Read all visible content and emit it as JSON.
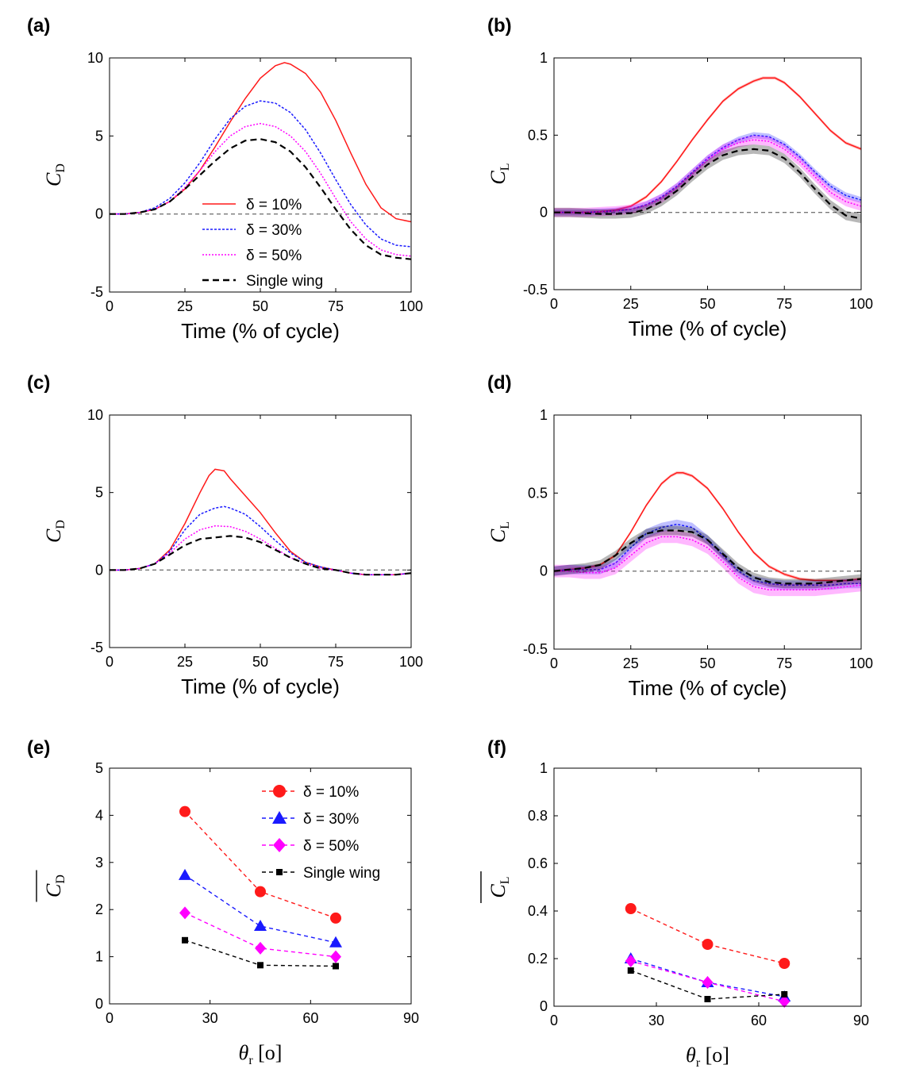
{
  "series_styles": [
    {
      "key": "d10",
      "name": "δ = 10%",
      "color": "#ff1a1a",
      "dash": "",
      "marker": "circle"
    },
    {
      "key": "d30",
      "name": "δ = 30%",
      "color": "#1a1aff",
      "dash": "3,2",
      "marker": "triangle"
    },
    {
      "key": "d50",
      "name": "δ = 50%",
      "color": "#ff00ff",
      "dash": "2,2",
      "marker": "diamond"
    },
    {
      "key": "single",
      "name": "Single wing",
      "color": "#000000",
      "dash": "8,5",
      "marker": "square"
    }
  ],
  "chart_data": [
    {
      "panel": "(a)",
      "type": "line",
      "xlabel": "Time (% of cycle)",
      "ylabel": "C",
      "ylabel_sub": "D",
      "xlim": [
        0,
        100
      ],
      "ylim": [
        -5,
        10
      ],
      "xticks": [
        0,
        25,
        50,
        75,
        100
      ],
      "yticks": [
        -5,
        0,
        5,
        10
      ],
      "zero_line": true,
      "legend": "center-left",
      "series": [
        {
          "key": "d10",
          "x": [
            0,
            5,
            10,
            15,
            20,
            25,
            30,
            35,
            40,
            45,
            50,
            55,
            58,
            60,
            65,
            70,
            75,
            80,
            85,
            90,
            95,
            100
          ],
          "y": [
            0,
            0,
            0.1,
            0.3,
            0.8,
            1.6,
            2.8,
            4.3,
            5.9,
            7.4,
            8.7,
            9.5,
            9.7,
            9.6,
            9.0,
            7.8,
            6.0,
            3.9,
            1.9,
            0.4,
            -0.3,
            -0.5
          ]
        },
        {
          "key": "d30",
          "x": [
            0,
            5,
            10,
            15,
            20,
            25,
            30,
            35,
            40,
            45,
            50,
            55,
            60,
            65,
            70,
            75,
            80,
            85,
            90,
            95,
            100
          ],
          "y": [
            0,
            0,
            0.1,
            0.4,
            1.0,
            2.0,
            3.3,
            4.8,
            6.1,
            6.9,
            7.25,
            7.1,
            6.5,
            5.4,
            3.9,
            2.2,
            0.6,
            -0.7,
            -1.6,
            -2.0,
            -2.1
          ]
        },
        {
          "key": "d50",
          "x": [
            0,
            5,
            10,
            15,
            20,
            25,
            30,
            35,
            40,
            45,
            50,
            55,
            60,
            65,
            70,
            75,
            80,
            85,
            90,
            95,
            100
          ],
          "y": [
            0,
            0,
            0.1,
            0.3,
            0.8,
            1.7,
            2.8,
            4.0,
            5.0,
            5.6,
            5.8,
            5.6,
            5.0,
            4.0,
            2.6,
            1.0,
            -0.5,
            -1.6,
            -2.3,
            -2.6,
            -2.7
          ]
        },
        {
          "key": "single",
          "x": [
            0,
            5,
            10,
            15,
            20,
            25,
            30,
            35,
            40,
            45,
            50,
            55,
            60,
            65,
            70,
            75,
            80,
            85,
            90,
            95,
            100
          ],
          "y": [
            0,
            0,
            0.1,
            0.3,
            0.8,
            1.6,
            2.5,
            3.4,
            4.2,
            4.7,
            4.8,
            4.6,
            4.0,
            3.0,
            1.7,
            0.3,
            -1.0,
            -2.0,
            -2.6,
            -2.8,
            -2.9
          ]
        }
      ]
    },
    {
      "panel": "(b)",
      "type": "line",
      "xlabel": "Time (% of cycle)",
      "ylabel": "C",
      "ylabel_sub": "L",
      "xlim": [
        0,
        100
      ],
      "ylim": [
        -0.5,
        1
      ],
      "xticks": [
        0,
        25,
        50,
        75,
        100
      ],
      "yticks": [
        -0.5,
        0,
        0.5,
        1
      ],
      "zero_line": true,
      "series": [
        {
          "key": "d10",
          "x": [
            0,
            5,
            10,
            15,
            20,
            25,
            30,
            35,
            40,
            45,
            50,
            55,
            60,
            65,
            68,
            70,
            72,
            75,
            80,
            85,
            90,
            95,
            100
          ],
          "y": [
            0,
            0,
            0,
            0.005,
            0.015,
            0.04,
            0.1,
            0.2,
            0.33,
            0.47,
            0.6,
            0.72,
            0.8,
            0.85,
            0.87,
            0.87,
            0.87,
            0.84,
            0.75,
            0.64,
            0.53,
            0.45,
            0.41
          ],
          "band": 0.01
        },
        {
          "key": "d30",
          "x": [
            0,
            5,
            10,
            15,
            20,
            25,
            30,
            35,
            40,
            45,
            50,
            55,
            60,
            65,
            70,
            75,
            80,
            85,
            90,
            95,
            100
          ],
          "y": [
            0,
            0,
            0,
            0.005,
            0.01,
            0.02,
            0.05,
            0.1,
            0.17,
            0.26,
            0.35,
            0.42,
            0.47,
            0.5,
            0.49,
            0.44,
            0.36,
            0.26,
            0.17,
            0.11,
            0.08
          ],
          "band": 0.02
        },
        {
          "key": "d50",
          "x": [
            0,
            5,
            10,
            15,
            20,
            25,
            30,
            35,
            40,
            45,
            50,
            55,
            60,
            65,
            70,
            75,
            80,
            85,
            90,
            95,
            100
          ],
          "y": [
            0,
            0,
            0,
            0.005,
            0.01,
            0.02,
            0.045,
            0.09,
            0.16,
            0.25,
            0.34,
            0.41,
            0.45,
            0.47,
            0.46,
            0.41,
            0.33,
            0.23,
            0.13,
            0.07,
            0.04
          ],
          "band": 0.03
        },
        {
          "key": "single",
          "x": [
            0,
            5,
            10,
            15,
            20,
            25,
            30,
            35,
            40,
            45,
            50,
            55,
            60,
            65,
            70,
            75,
            80,
            85,
            90,
            95,
            100
          ],
          "y": [
            0,
            0,
            -0.005,
            -0.01,
            -0.01,
            -0.005,
            0.02,
            0.07,
            0.14,
            0.23,
            0.31,
            0.37,
            0.4,
            0.41,
            0.4,
            0.35,
            0.26,
            0.15,
            0.05,
            -0.02,
            -0.04
          ],
          "band": 0.03
        }
      ]
    },
    {
      "panel": "(c)",
      "type": "line",
      "xlabel": "Time (% of cycle)",
      "ylabel": "C",
      "ylabel_sub": "D",
      "xlim": [
        0,
        100
      ],
      "ylim": [
        -5,
        10
      ],
      "xticks": [
        0,
        25,
        50,
        75,
        100
      ],
      "yticks": [
        -5,
        0,
        5,
        10
      ],
      "zero_line": true,
      "series": [
        {
          "key": "d10",
          "x": [
            0,
            5,
            10,
            15,
            20,
            25,
            30,
            33,
            35,
            38,
            40,
            45,
            50,
            55,
            60,
            65,
            70,
            75,
            80,
            85,
            90,
            95,
            100
          ],
          "y": [
            0,
            0,
            0.1,
            0.4,
            1.3,
            3.0,
            5.0,
            6.1,
            6.5,
            6.4,
            5.9,
            4.8,
            3.7,
            2.4,
            1.2,
            0.5,
            0.2,
            0,
            -0.2,
            -0.3,
            -0.3,
            -0.3,
            -0.2
          ]
        },
        {
          "key": "d30",
          "x": [
            0,
            5,
            10,
            15,
            20,
            25,
            30,
            35,
            38,
            40,
            45,
            50,
            55,
            60,
            65,
            70,
            75,
            80,
            85,
            90,
            95,
            100
          ],
          "y": [
            0,
            0,
            0.1,
            0.4,
            1.2,
            2.6,
            3.6,
            4.0,
            4.1,
            4.0,
            3.6,
            2.8,
            1.9,
            1.1,
            0.5,
            0.2,
            0,
            -0.2,
            -0.3,
            -0.3,
            -0.3,
            -0.2
          ]
        },
        {
          "key": "d50",
          "x": [
            0,
            5,
            10,
            15,
            20,
            25,
            30,
            35,
            40,
            45,
            50,
            55,
            60,
            65,
            70,
            75,
            80,
            85,
            90,
            95,
            100
          ],
          "y": [
            0,
            0,
            0.1,
            0.4,
            1.1,
            2.0,
            2.6,
            2.85,
            2.8,
            2.5,
            2.0,
            1.4,
            0.8,
            0.4,
            0.1,
            0,
            -0.2,
            -0.3,
            -0.3,
            -0.3,
            -0.2
          ]
        },
        {
          "key": "single",
          "x": [
            0,
            5,
            10,
            15,
            20,
            25,
            30,
            35,
            40,
            45,
            50,
            55,
            60,
            65,
            70,
            75,
            80,
            85,
            90,
            95,
            100
          ],
          "y": [
            0,
            0,
            0.1,
            0.4,
            1.0,
            1.6,
            2.0,
            2.1,
            2.2,
            2.1,
            1.8,
            1.3,
            0.8,
            0.4,
            0.1,
            0,
            -0.2,
            -0.3,
            -0.3,
            -0.3,
            -0.2
          ]
        }
      ]
    },
    {
      "panel": "(d)",
      "type": "line",
      "xlabel": "Time (% of cycle)",
      "ylabel": "C",
      "ylabel_sub": "L",
      "xlim": [
        0,
        100
      ],
      "ylim": [
        -0.5,
        1
      ],
      "xticks": [
        0,
        25,
        50,
        75,
        100
      ],
      "yticks": [
        -0.5,
        0,
        0.5,
        1
      ],
      "zero_line": true,
      "series": [
        {
          "key": "d10",
          "x": [
            0,
            5,
            10,
            15,
            20,
            25,
            30,
            35,
            38,
            40,
            42,
            45,
            50,
            55,
            60,
            65,
            70,
            75,
            80,
            85,
            90,
            95,
            100
          ],
          "y": [
            0,
            0.01,
            0.02,
            0.04,
            0.1,
            0.25,
            0.42,
            0.56,
            0.61,
            0.63,
            0.63,
            0.61,
            0.53,
            0.4,
            0.25,
            0.12,
            0.03,
            -0.02,
            -0.05,
            -0.06,
            -0.06,
            -0.06,
            -0.05
          ],
          "band": 0.01
        },
        {
          "key": "d30",
          "x": [
            0,
            5,
            10,
            15,
            20,
            25,
            30,
            35,
            40,
            45,
            50,
            55,
            60,
            65,
            70,
            75,
            80,
            85,
            90,
            95,
            100
          ],
          "y": [
            0,
            0.01,
            0.01,
            0.01,
            0.05,
            0.15,
            0.24,
            0.28,
            0.3,
            0.28,
            0.2,
            0.1,
            0,
            -0.06,
            -0.08,
            -0.09,
            -0.09,
            -0.09,
            -0.09,
            -0.08,
            -0.08
          ],
          "band": 0.03
        },
        {
          "key": "d50",
          "x": [
            0,
            5,
            10,
            15,
            20,
            25,
            30,
            35,
            40,
            45,
            50,
            55,
            60,
            65,
            70,
            75,
            80,
            85,
            90,
            95,
            100
          ],
          "y": [
            0,
            0,
            -0.01,
            -0.01,
            0.02,
            0.1,
            0.18,
            0.22,
            0.22,
            0.2,
            0.15,
            0.06,
            -0.04,
            -0.1,
            -0.12,
            -0.12,
            -0.12,
            -0.12,
            -0.11,
            -0.1,
            -0.09
          ],
          "band": 0.04
        },
        {
          "key": "single",
          "x": [
            0,
            5,
            10,
            15,
            20,
            25,
            30,
            35,
            40,
            45,
            50,
            55,
            60,
            65,
            70,
            75,
            80,
            85,
            90,
            95,
            100
          ],
          "y": [
            0,
            0.01,
            0.02,
            0.04,
            0.1,
            0.18,
            0.24,
            0.26,
            0.26,
            0.25,
            0.2,
            0.11,
            0.02,
            -0.04,
            -0.07,
            -0.08,
            -0.08,
            -0.08,
            -0.07,
            -0.06,
            -0.05
          ],
          "band": 0.03
        }
      ]
    },
    {
      "panel": "(e)",
      "type": "scatter",
      "xlabel": "θ",
      "xlabel_sub": "r",
      "xlabel_unit": "[o]",
      "ylabel": "C",
      "ylabel_sub": "D",
      "xlim": [
        0,
        90
      ],
      "ylim": [
        0,
        5
      ],
      "xticks": [
        0,
        30,
        60,
        90
      ],
      "yticks": [
        0,
        1,
        2,
        3,
        4,
        5
      ],
      "legend": "top-right",
      "x": [
        22.5,
        45,
        67.5
      ],
      "series": [
        {
          "key": "d10",
          "values": [
            4.08,
            2.38,
            1.82
          ]
        },
        {
          "key": "d30",
          "values": [
            2.73,
            1.65,
            1.3
          ]
        },
        {
          "key": "d50",
          "values": [
            1.93,
            1.18,
            1.0
          ]
        },
        {
          "key": "single",
          "values": [
            1.35,
            0.82,
            0.8
          ]
        }
      ]
    },
    {
      "panel": "(f)",
      "type": "scatter",
      "xlabel": "θ",
      "xlabel_sub": "r",
      "xlabel_unit": "[o]",
      "ylabel": "C",
      "ylabel_sub": "L",
      "xlim": [
        0,
        90
      ],
      "ylim": [
        0,
        1
      ],
      "xticks": [
        0,
        30,
        60,
        90
      ],
      "yticks": [
        0,
        0.2,
        0.4,
        0.6,
        0.8,
        1
      ],
      "x": [
        22.5,
        45,
        67.5
      ],
      "series": [
        {
          "key": "d10",
          "values": [
            0.41,
            0.26,
            0.18
          ]
        },
        {
          "key": "d30",
          "values": [
            0.2,
            0.1,
            0.04
          ]
        },
        {
          "key": "d50",
          "values": [
            0.19,
            0.1,
            0.02
          ]
        },
        {
          "key": "single",
          "values": [
            0.15,
            0.03,
            0.05
          ]
        }
      ]
    }
  ]
}
